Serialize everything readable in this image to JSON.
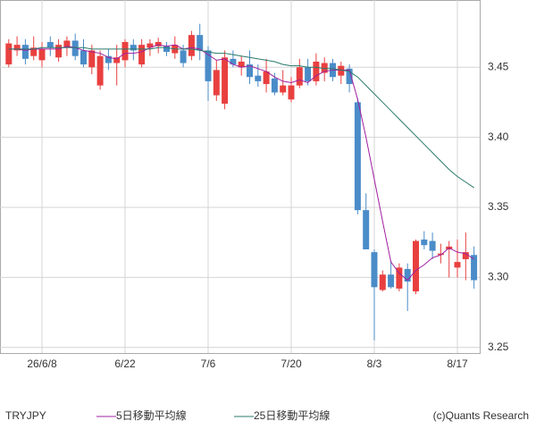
{
  "chart_data": {
    "type": "candlestick",
    "symbol": "TRYJPY",
    "credit": "(c)Quants Research",
    "categories": [
      null,
      null,
      null,
      null,
      "26/6/8",
      null,
      null,
      null,
      null,
      null,
      null,
      null,
      null,
      null,
      "6/22",
      null,
      null,
      null,
      null,
      null,
      null,
      null,
      null,
      null,
      "7/6",
      null,
      null,
      null,
      null,
      null,
      null,
      null,
      null,
      null,
      "7/20",
      null,
      null,
      null,
      null,
      null,
      null,
      null,
      null,
      null,
      "8/3",
      null,
      null,
      null,
      null,
      null,
      null,
      null,
      null,
      null,
      "8/17",
      null,
      null
    ],
    "open": [
      3.452,
      3.462,
      3.466,
      3.458,
      3.455,
      3.468,
      3.457,
      3.464,
      3.469,
      3.462,
      3.45,
      3.437,
      3.458,
      3.453,
      3.455,
      3.466,
      3.452,
      3.464,
      3.465,
      3.465,
      3.46,
      3.462,
      3.458,
      3.473,
      3.462,
      3.43,
      3.424,
      3.456,
      3.45,
      3.452,
      3.444,
      3.438,
      3.442,
      3.432,
      3.427,
      3.437,
      3.45,
      3.44,
      3.446,
      3.453,
      3.444,
      3.449,
      3.425,
      3.348,
      3.318,
      3.291,
      3.302,
      3.292,
      3.306,
      3.29,
      3.327,
      3.326,
      3.316,
      3.32,
      3.307,
      3.313,
      3.316
    ],
    "high": [
      3.47,
      3.472,
      3.47,
      3.472,
      3.468,
      3.472,
      3.47,
      3.472,
      3.474,
      3.47,
      3.466,
      3.462,
      3.463,
      3.466,
      3.47,
      3.47,
      3.47,
      3.47,
      3.471,
      3.468,
      3.472,
      3.466,
      3.476,
      3.481,
      3.465,
      3.455,
      3.462,
      3.462,
      3.458,
      3.462,
      3.452,
      3.456,
      3.446,
      3.448,
      3.443,
      3.456,
      3.456,
      3.46,
      3.457,
      3.456,
      3.454,
      3.452,
      3.428,
      3.36,
      3.32,
      3.305,
      3.312,
      3.31,
      3.31,
      3.327,
      3.333,
      3.332,
      3.324,
      3.326,
      3.327,
      3.332,
      3.322
    ],
    "low": [
      3.45,
      3.458,
      3.452,
      3.455,
      3.45,
      3.458,
      3.454,
      3.458,
      3.455,
      3.45,
      3.445,
      3.434,
      3.448,
      3.437,
      3.45,
      3.455,
      3.45,
      3.458,
      3.46,
      3.458,
      3.456,
      3.45,
      3.455,
      3.455,
      3.426,
      3.426,
      3.42,
      3.45,
      3.444,
      3.438,
      3.436,
      3.432,
      3.43,
      3.43,
      3.425,
      3.435,
      3.437,
      3.437,
      3.44,
      3.44,
      3.438,
      3.432,
      3.345,
      3.32,
      3.255,
      3.29,
      3.292,
      3.29,
      3.276,
      3.288,
      3.32,
      3.313,
      3.31,
      3.3,
      3.3,
      3.298,
      3.292
    ],
    "close": [
      3.467,
      3.466,
      3.456,
      3.464,
      3.463,
      3.464,
      3.466,
      3.469,
      3.458,
      3.452,
      3.462,
      3.458,
      3.453,
      3.457,
      3.468,
      3.462,
      3.466,
      3.467,
      3.468,
      3.461,
      3.466,
      3.453,
      3.473,
      3.462,
      3.44,
      3.448,
      3.457,
      3.452,
      3.454,
      3.443,
      3.44,
      3.447,
      3.432,
      3.437,
      3.437,
      3.45,
      3.44,
      3.454,
      3.453,
      3.443,
      3.451,
      3.438,
      3.348,
      3.32,
      3.293,
      3.302,
      3.293,
      3.307,
      3.297,
      3.326,
      3.323,
      3.319,
      3.317,
      3.322,
      3.311,
      3.318,
      3.298
    ],
    "up_color": "#e8403f",
    "down_color": "#4a8cc8",
    "series": [
      {
        "name": "5日移動平均線",
        "color": "#a020a0",
        "values": [
          3.463,
          3.463,
          3.462,
          3.463,
          3.463,
          3.463,
          3.463,
          3.465,
          3.464,
          3.462,
          3.461,
          3.46,
          3.457,
          3.456,
          3.46,
          3.46,
          3.461,
          3.464,
          3.466,
          3.465,
          3.466,
          3.463,
          3.464,
          3.463,
          3.459,
          3.455,
          3.456,
          3.452,
          3.45,
          3.451,
          3.449,
          3.447,
          3.443,
          3.44,
          3.439,
          3.441,
          3.439,
          3.444,
          3.447,
          3.448,
          3.448,
          3.448,
          3.427,
          3.4,
          3.37,
          3.34,
          3.311,
          3.303,
          3.298,
          3.305,
          3.309,
          3.314,
          3.316,
          3.321,
          3.318,
          3.317,
          3.313
        ]
      },
      {
        "name": "25日移動平均線",
        "color": "#2a7a6a",
        "values": [
          3.463,
          3.463,
          3.463,
          3.463,
          3.464,
          3.464,
          3.464,
          3.464,
          3.464,
          3.464,
          3.463,
          3.463,
          3.463,
          3.463,
          3.463,
          3.463,
          3.463,
          3.463,
          3.464,
          3.464,
          3.463,
          3.463,
          3.463,
          3.462,
          3.461,
          3.46,
          3.46,
          3.459,
          3.458,
          3.457,
          3.456,
          3.455,
          3.454,
          3.452,
          3.451,
          3.451,
          3.45,
          3.45,
          3.449,
          3.449,
          3.448,
          3.447,
          3.443,
          3.437,
          3.431,
          3.425,
          3.419,
          3.413,
          3.407,
          3.401,
          3.395,
          3.389,
          3.383,
          3.377,
          3.372,
          3.368,
          3.364
        ]
      }
    ],
    "ylim": [
      3.246,
      3.498
    ],
    "yticks": [
      3.25,
      {
        "value": 3.3,
        "label": "3.30"
      },
      3.35,
      {
        "value": 3.4,
        "label": "3.40"
      },
      3.45
    ],
    "grid": true
  }
}
